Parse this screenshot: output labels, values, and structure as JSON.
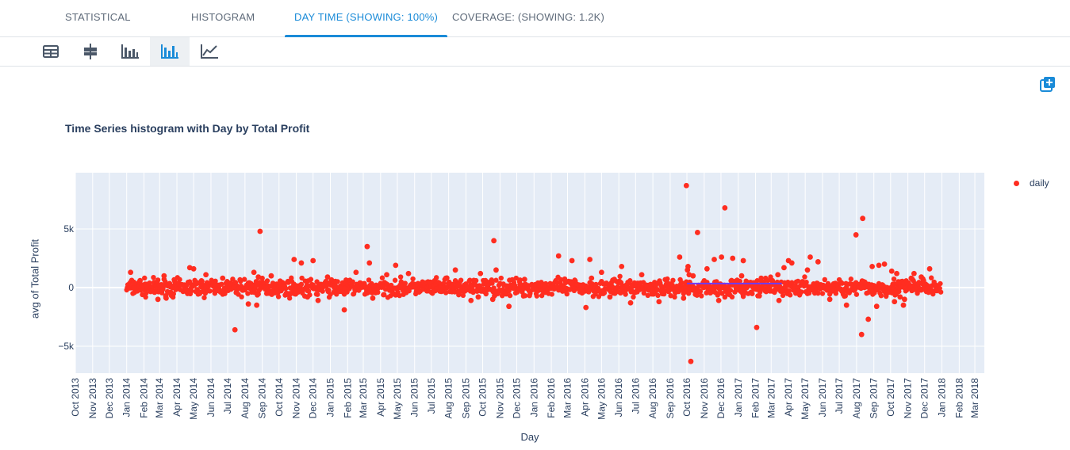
{
  "tabs": [
    {
      "label": "STATISTICAL",
      "active": false
    },
    {
      "label": "HISTOGRAM",
      "active": false
    },
    {
      "label": "DAY TIME (SHOWING: 100%)",
      "active": true
    },
    {
      "label": "COVERAGE: (SHOWING: 1.2K)",
      "active": false
    }
  ],
  "toolbar": {
    "icons": [
      "table-icon",
      "box-plot-icon",
      "bar-chart-icon",
      "histogram-icon",
      "line-chart-icon"
    ],
    "active": "histogram-icon"
  },
  "add_icon": "add-to-dashboard-icon",
  "colors": {
    "accent": "#1a8bd8",
    "point": "#ff2d20",
    "mean_line": "#6c3bff",
    "plot_bg": "#e5ecf6"
  },
  "chart_data": {
    "type": "scatter",
    "title": "Time Series histogram with Day by Total Profit",
    "xlabel": "Day",
    "ylabel": "avg of Total Profit",
    "legend": {
      "entries": [
        "daily"
      ],
      "placement": "top-right"
    },
    "grid": true,
    "xlim": [
      "2013-10-01",
      "2018-03-18"
    ],
    "ylim": [
      -7300,
      9800
    ],
    "y_ticks": [
      {
        "value": 5000,
        "label": "5k"
      },
      {
        "value": 0,
        "label": "0"
      },
      {
        "value": -5000,
        "label": "−5k"
      }
    ],
    "x_ticks": [
      "Oct 2013",
      "Nov 2013",
      "Dec 2013",
      "Jan 2014",
      "Feb 2014",
      "Mar 2014",
      "Apr 2014",
      "May 2014",
      "Jun 2014",
      "Jul 2014",
      "Aug 2014",
      "Sep 2014",
      "Oct 2014",
      "Nov 2014",
      "Dec 2014",
      "Jan 2015",
      "Feb 2015",
      "Mar 2015",
      "Apr 2015",
      "May 2015",
      "Jun 2015",
      "Jul 2015",
      "Aug 2015",
      "Sep 2015",
      "Oct 2015",
      "Nov 2015",
      "Dec 2015",
      "Jan 2016",
      "Feb 2016",
      "Mar 2016",
      "Apr 2016",
      "May 2016",
      "Jun 2016",
      "Jul 2016",
      "Aug 2016",
      "Sep 2016",
      "Oct 2016",
      "Nov 2016",
      "Dec 2016",
      "Jan 2017",
      "Feb 2017",
      "Mar 2017",
      "Apr 2017",
      "May 2017",
      "Jun 2017",
      "Jul 2017",
      "Aug 2017",
      "Sep 2017",
      "Oct 2017",
      "Nov 2017",
      "Dec 2017",
      "Jan 2018",
      "Feb 2018",
      "Mar 2018"
    ],
    "series": [
      {
        "name": "daily",
        "x": [
          "2014-01-08",
          "2014-01-14",
          "2014-01-25",
          "2014-02-05",
          "2014-02-20",
          "2014-02-26",
          "2014-03-09",
          "2014-03-12",
          "2014-04-24",
          "2014-05-01",
          "2014-05-23",
          "2014-06-18",
          "2014-06-22",
          "2014-07-14",
          "2014-08-04",
          "2014-08-07",
          "2014-08-09",
          "2014-08-17",
          "2014-08-22",
          "2014-08-25",
          "2014-08-28",
          "2014-09-09",
          "2014-09-17",
          "2014-10-28",
          "2014-10-31",
          "2014-11-10",
          "2014-11-21",
          "2014-12-01",
          "2014-12-10",
          "2014-12-27",
          "2015-01-26",
          "2015-02-16",
          "2015-03-08",
          "2015-03-12",
          "2015-03-18",
          "2015-04-07",
          "2015-04-12",
          "2015-04-28",
          "2015-05-07",
          "2015-05-21",
          "2015-06-18",
          "2015-07-27",
          "2015-08-13",
          "2015-08-20",
          "2015-09-10",
          "2015-09-23",
          "2015-09-27",
          "2015-10-19",
          "2015-10-21",
          "2015-10-25",
          "2015-11-17",
          "2015-12-07",
          "2015-12-15",
          "2016-01-20",
          "2016-02-14",
          "2016-03-09",
          "2016-04-03",
          "2016-04-10",
          "2016-04-13",
          "2016-05-01",
          "2016-05-16",
          "2016-06-06",
          "2016-06-22",
          "2016-07-12",
          "2016-08-12",
          "2016-09-18",
          "2016-09-25",
          "2016-09-30",
          "2016-10-02",
          "2016-10-03",
          "2016-10-05",
          "2016-10-08",
          "2016-10-12",
          "2016-10-20",
          "2016-11-06",
          "2016-11-19",
          "2016-11-27",
          "2016-12-02",
          "2016-12-08",
          "2016-12-22",
          "2017-01-07",
          "2017-01-10",
          "2017-02-03",
          "2017-03-03",
          "2017-03-13",
          "2017-03-15",
          "2017-03-24",
          "2017-04-01",
          "2017-04-07",
          "2017-05-05",
          "2017-05-10",
          "2017-05-24",
          "2017-06-14",
          "2017-07-14",
          "2017-07-31",
          "2017-08-10",
          "2017-08-12",
          "2017-08-22",
          "2017-08-29",
          "2017-09-06",
          "2017-09-10",
          "2017-09-20",
          "2017-10-03",
          "2017-10-08",
          "2017-10-12",
          "2017-10-15",
          "2017-10-18",
          "2017-10-24",
          "2017-10-26",
          "2017-11-07",
          "2017-11-09",
          "2017-11-12",
          "2017-11-25",
          "2017-11-29",
          "2017-12-10"
        ],
        "y": [
          1300,
          -50,
          600,
          200,
          -400,
          -1000,
          1000,
          -700,
          1700,
          1600,
          1100,
          -300,
          800,
          -3600,
          200,
          -1400,
          400,
          1300,
          -1500,
          900,
          4800,
          -500,
          1000,
          2400,
          -300,
          2100,
          -800,
          2300,
          -1100,
          900,
          -1900,
          1300,
          3500,
          2100,
          -900,
          -600,
          1100,
          1900,
          200,
          1200,
          400,
          800,
          1500,
          -400,
          -1100,
          -800,
          1200,
          -1000,
          4000,
          1500,
          -1600,
          300,
          700,
          200,
          2700,
          2300,
          -1700,
          2400,
          800,
          1300,
          -800,
          1800,
          -1300,
          1100,
          -1200,
          2600,
          -900,
          8700,
          1500,
          1800,
          1100,
          -6300,
          1000,
          4700,
          1600,
          2400,
          -1100,
          2600,
          6800,
          2500,
          1000,
          2300,
          -3400,
          600,
          1100,
          -1100,
          1700,
          2300,
          2100,
          1500,
          2600,
          2200,
          -1000,
          -1500,
          4500,
          -4000,
          5900,
          -2700,
          1800,
          -1600,
          1900,
          2000,
          1400,
          -1200,
          1200,
          500,
          -800,
          -1500,
          -1000,
          800,
          700,
          1200,
          900,
          600,
          1600
        ],
        "cloud": {
          "start": "2014-01-01",
          "end": "2017-12-30",
          "mean": 0,
          "spread": 350
        }
      }
    ],
    "mean_line": {
      "start": "2016-10-01",
      "end": "2017-03-20",
      "value": 350
    }
  }
}
